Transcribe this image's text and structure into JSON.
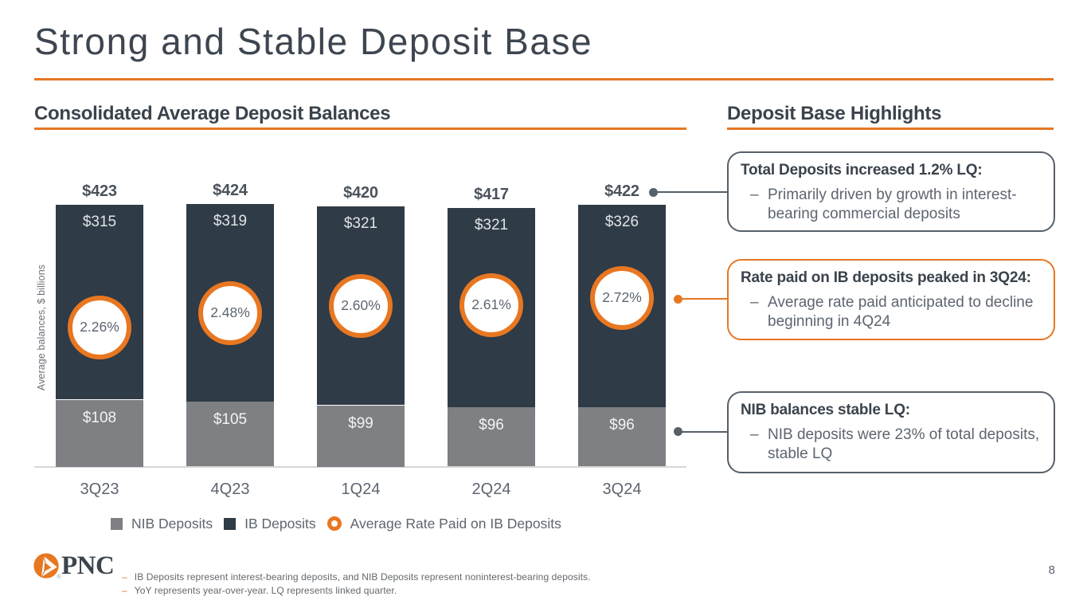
{
  "slide": {
    "title": "Strong and Stable Deposit Base",
    "page_number": "8",
    "logo_text": "PNC",
    "logo_reg_mark": "®"
  },
  "left_section": {
    "heading": "Consolidated Average Deposit Balances"
  },
  "right_section": {
    "heading": "Deposit Base Highlights"
  },
  "chart_data": {
    "type": "bar",
    "stacked": true,
    "title": "Consolidated Average Deposit Balances",
    "ylabel": "Average balances, $ billions",
    "value_prefix": "$",
    "categories": [
      "3Q23",
      "4Q23",
      "1Q24",
      "2Q24",
      "3Q24"
    ],
    "series": [
      {
        "name": "NIB Deposits",
        "values": [
          108,
          105,
          99,
          96,
          96
        ]
      },
      {
        "name": "IB Deposits",
        "values": [
          315,
          319,
          321,
          321,
          326
        ]
      }
    ],
    "totals": [
      423,
      424,
      420,
      417,
      422
    ],
    "rate_series": {
      "name": "Average Rate Paid on IB Deposits",
      "values_percent": [
        2.26,
        2.48,
        2.6,
        2.61,
        2.72
      ]
    },
    "legend_position": "bottom",
    "grid": false
  },
  "callouts": [
    {
      "accent": "slate",
      "title": "Total Deposits increased 1.2% LQ:",
      "bullet_dash": "–",
      "bullet": "Primarily driven by growth in interest-bearing commercial deposits"
    },
    {
      "accent": "orange",
      "title": "Rate paid on IB deposits peaked in 3Q24:",
      "bullet_dash": "–",
      "bullet": "Average rate paid anticipated to decline beginning in 4Q24"
    },
    {
      "accent": "slate",
      "title": "NIB balances stable LQ:",
      "bullet_dash": "–",
      "bullet": "NIB deposits were 23% of total deposits, stable LQ"
    }
  ],
  "footnotes": [
    {
      "dash": "–",
      "text": "IB Deposits represent interest-bearing deposits, and NIB Deposits represent noninterest-bearing deposits."
    },
    {
      "dash": "–",
      "text": "YoY represents year-over-year. LQ represents linked quarter."
    }
  ],
  "palette": {
    "orange": "#e87722",
    "ib_dark": "#2f3b46",
    "nib_gray": "#7e8083",
    "slate_border": "#566069",
    "title_color": "#3d4650",
    "heading_color": "#3a434c",
    "text_gray": "#5d6570",
    "axis_gray": "#6b7178",
    "baseline_gray": "#d6d7d8",
    "total_label": "#4a525b",
    "footnote_gray": "#63686d"
  }
}
